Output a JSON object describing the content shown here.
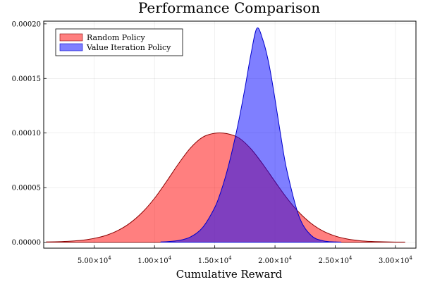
{
  "chart_data": {
    "type": "area",
    "title": "Performance Comparison",
    "xlabel": "Cumulative Reward",
    "ylabel": "",
    "xlim": [
      800,
      31700
    ],
    "ylim": [
      -5.5e-06,
      0.0002025
    ],
    "xticks": [
      {
        "value": 5000,
        "mant": "5.00",
        "exp": "4",
        "base": "10"
      },
      {
        "value": 10000,
        "mant": "1.00",
        "exp": "4",
        "base": "10"
      },
      {
        "value": 15000,
        "mant": "1.50",
        "exp": "4",
        "base": "10"
      },
      {
        "value": 20000,
        "mant": "2.00",
        "exp": "4",
        "base": "10"
      },
      {
        "value": 25000,
        "mant": "2.50",
        "exp": "4",
        "base": "10"
      },
      {
        "value": 30000,
        "mant": "3.00",
        "exp": "4",
        "base": "10"
      }
    ],
    "yticks": [
      {
        "value": 0.0,
        "label": "0.00000"
      },
      {
        "value": 5e-05,
        "label": "0.00005"
      },
      {
        "value": 0.0001,
        "label": "0.00010"
      },
      {
        "value": 0.00015,
        "label": "0.00015"
      },
      {
        "value": 0.0002,
        "label": "0.00020"
      }
    ],
    "grid": true,
    "legend_position": "top-left",
    "series": [
      {
        "name": "Random Policy",
        "fill": "#ff0000",
        "stroke": "#8b0000",
        "x": [
          1000,
          2000,
          3000,
          4000,
          5000,
          6000,
          7000,
          8000,
          9000,
          10000,
          11000,
          12000,
          13000,
          14000,
          15000,
          16000,
          17000,
          18000,
          19000,
          20000,
          21000,
          22000,
          23000,
          24000,
          25000,
          26000,
          27000,
          28000,
          29000,
          30000,
          30800
        ],
        "y": [
          2e-07,
          4e-07,
          9e-07,
          1.8e-06,
          3.5e-06,
          6.3e-06,
          1.09e-05,
          1.78e-05,
          2.75e-05,
          4.02e-05,
          5.57e-05,
          7.2e-05,
          8.65e-05,
          9.62e-05,
          9.98e-05,
          9.95e-05,
          9.55e-05,
          8.55e-05,
          7.13e-05,
          5.55e-05,
          4.02e-05,
          2.72e-05,
          1.72e-05,
          1.01e-05,
          5.6e-06,
          2.9e-06,
          1.4e-06,
          6e-07,
          3e-07,
          1e-07,
          5e-08
        ]
      },
      {
        "name": "Value Iteration Policy",
        "fill": "#0000ff",
        "stroke": "#0000cc",
        "x": [
          10500,
          11000,
          12000,
          13000,
          14000,
          15000,
          15500,
          16000,
          16500,
          17000,
          17500,
          18000,
          18500,
          19000,
          19500,
          20000,
          20500,
          21000,
          22000,
          23000,
          24000,
          25000,
          25500
        ],
        "y": [
          2e-07,
          4e-07,
          1.5e-06,
          4.9e-06,
          1.35e-05,
          3.18e-05,
          4.61e-05,
          6.43e-05,
          8.64e-05,
          0.0001117,
          0.0001407,
          0.000172,
          0.000196,
          0.000185,
          0.000163,
          0.000131,
          9.6e-05,
          6.5e-05,
          2.35e-05,
          6.2e-06,
          1.2e-06,
          2e-07,
          5e-08
        ]
      }
    ]
  }
}
